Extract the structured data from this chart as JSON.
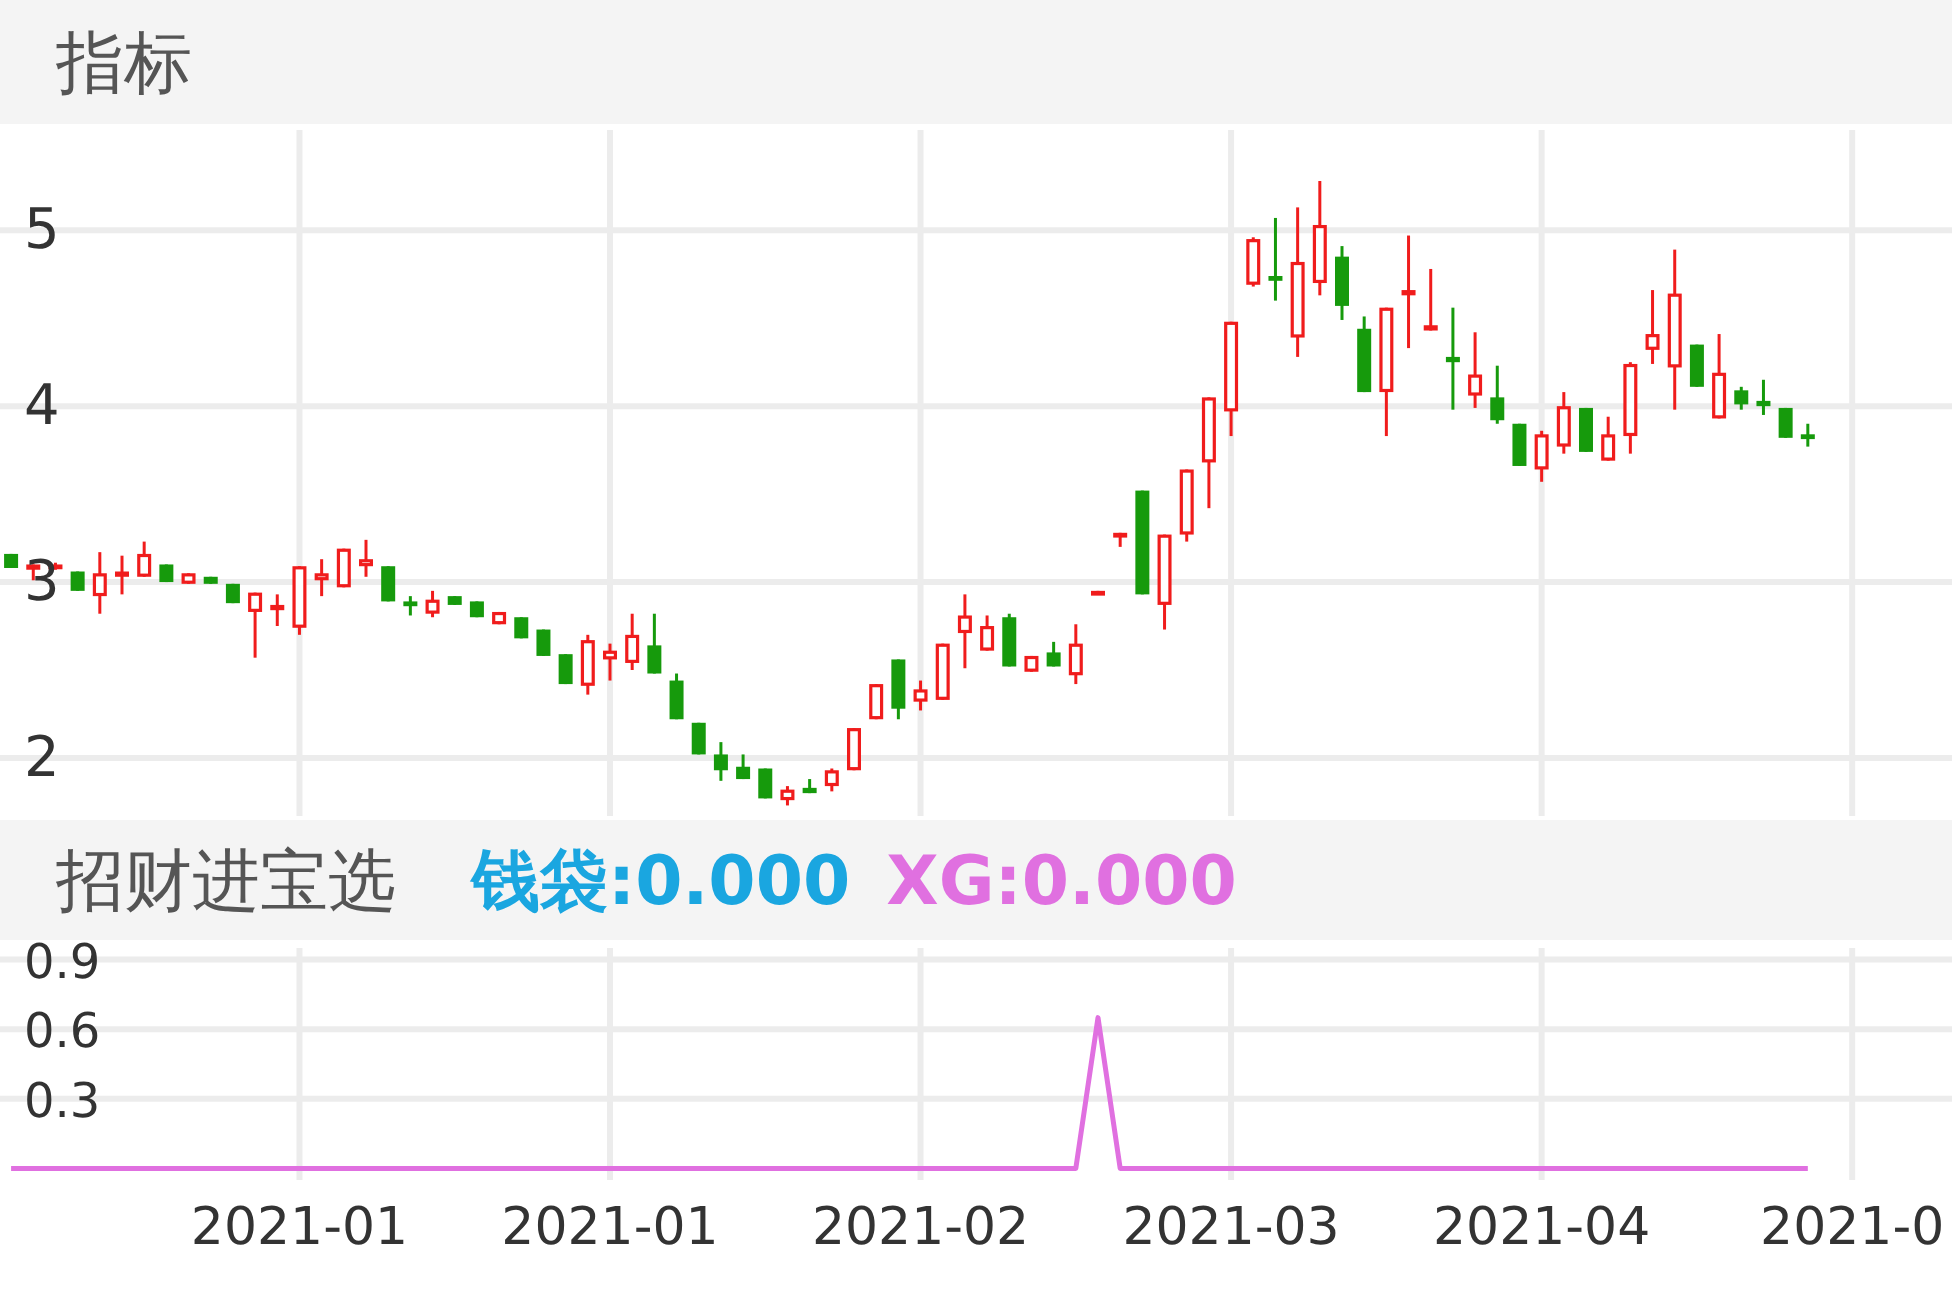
{
  "chart_data": [
    {
      "type": "candlestick",
      "title": "指标",
      "tick_labels": "y",
      "grid": true,
      "categories": [
        null,
        null,
        null,
        null,
        null,
        null,
        null,
        null,
        null,
        null,
        null,
        null,
        null,
        "2021-01",
        null,
        null,
        null,
        null,
        null,
        null,
        null,
        null,
        null,
        null,
        null,
        null,
        null,
        "2021-01",
        null,
        null,
        null,
        null,
        null,
        null,
        null,
        null,
        null,
        null,
        null,
        null,
        null,
        "2021-02",
        null,
        null,
        null,
        null,
        null,
        null,
        null,
        null,
        null,
        null,
        null,
        null,
        null,
        "2021-03",
        null,
        null,
        null,
        null,
        null,
        null,
        null,
        null,
        null,
        null,
        null,
        null,
        null,
        "2021-04",
        null,
        null,
        null,
        null,
        null,
        null,
        null,
        null,
        null,
        null,
        null,
        null,
        null,
        "2021-0",
        null,
        null,
        null,
        null
      ],
      "ohlc": [
        [
          3.16,
          3.16,
          3.08,
          3.08
        ],
        [
          3.07,
          3.1,
          3.01,
          3.1
        ],
        [
          3.08,
          3.11,
          3.07,
          3.1
        ],
        [
          3.06,
          3.06,
          2.95,
          2.95
        ],
        [
          2.92,
          3.17,
          2.82,
          3.05
        ],
        [
          3.03,
          3.15,
          2.93,
          3.06
        ],
        [
          3.03,
          3.23,
          3.03,
          3.16
        ],
        [
          3.1,
          3.1,
          3.0,
          3.0
        ],
        [
          2.99,
          3.05,
          2.99,
          3.05
        ],
        [
          3.03,
          3.03,
          2.99,
          2.99
        ],
        [
          2.99,
          2.99,
          2.88,
          2.88
        ],
        [
          2.83,
          2.94,
          2.57,
          2.94
        ],
        [
          2.84,
          2.93,
          2.75,
          2.87
        ],
        [
          2.74,
          3.09,
          2.7,
          3.09
        ],
        [
          3.01,
          3.13,
          2.92,
          3.05
        ],
        [
          2.97,
          3.19,
          2.97,
          3.19
        ],
        [
          3.09,
          3.24,
          3.03,
          3.13
        ],
        [
          3.09,
          3.09,
          2.89,
          2.89
        ],
        [
          2.89,
          2.92,
          2.81,
          2.87
        ],
        [
          2.82,
          2.95,
          2.8,
          2.9
        ],
        [
          2.92,
          2.92,
          2.87,
          2.87
        ],
        [
          2.89,
          2.89,
          2.8,
          2.8
        ],
        [
          2.76,
          2.83,
          2.76,
          2.83
        ],
        [
          2.8,
          2.8,
          2.68,
          2.68
        ],
        [
          2.73,
          2.73,
          2.58,
          2.58
        ],
        [
          2.59,
          2.59,
          2.42,
          2.42
        ],
        [
          2.41,
          2.7,
          2.36,
          2.67
        ],
        [
          2.56,
          2.65,
          2.44,
          2.61
        ],
        [
          2.54,
          2.82,
          2.5,
          2.7
        ],
        [
          2.64,
          2.82,
          2.48,
          2.48
        ],
        [
          2.44,
          2.48,
          2.22,
          2.22
        ],
        [
          2.2,
          2.2,
          2.02,
          2.02
        ],
        [
          2.02,
          2.09,
          1.87,
          1.93
        ],
        [
          1.95,
          2.02,
          1.88,
          1.88
        ],
        [
          1.94,
          1.94,
          1.77,
          1.77
        ],
        [
          1.76,
          1.84,
          1.73,
          1.82
        ],
        [
          1.83,
          1.88,
          1.8,
          1.8
        ],
        [
          1.84,
          1.94,
          1.81,
          1.93
        ],
        [
          1.93,
          2.17,
          1.93,
          2.17
        ],
        [
          2.22,
          2.42,
          2.22,
          2.42
        ],
        [
          2.56,
          2.56,
          2.22,
          2.28
        ],
        [
          2.32,
          2.44,
          2.27,
          2.39
        ],
        [
          2.33,
          2.65,
          2.33,
          2.65
        ],
        [
          2.71,
          2.93,
          2.51,
          2.81
        ],
        [
          2.61,
          2.81,
          2.61,
          2.75
        ],
        [
          2.8,
          2.82,
          2.52,
          2.52
        ],
        [
          2.49,
          2.58,
          2.49,
          2.58
        ],
        [
          2.6,
          2.66,
          2.52,
          2.52
        ],
        [
          2.47,
          2.76,
          2.42,
          2.65
        ],
        [
          2.94,
          2.95,
          2.94,
          2.95
        ],
        [
          3.26,
          3.28,
          3.2,
          3.28
        ],
        [
          3.52,
          3.52,
          2.93,
          2.93
        ],
        [
          2.87,
          3.27,
          2.73,
          3.27
        ],
        [
          3.27,
          3.64,
          3.23,
          3.64
        ],
        [
          3.68,
          4.05,
          3.42,
          4.05
        ],
        [
          3.97,
          4.48,
          3.83,
          4.48
        ],
        [
          4.69,
          4.96,
          4.68,
          4.95
        ],
        [
          4.74,
          5.07,
          4.6,
          4.72
        ],
        [
          4.39,
          5.13,
          4.28,
          4.82
        ],
        [
          4.7,
          5.28,
          4.63,
          5.03
        ],
        [
          4.85,
          4.91,
          4.49,
          4.57
        ],
        [
          4.44,
          4.51,
          4.08,
          4.08
        ],
        [
          4.08,
          4.56,
          3.83,
          4.56
        ],
        [
          4.63,
          4.97,
          4.33,
          4.66
        ],
        [
          4.43,
          4.78,
          4.43,
          4.46
        ],
        [
          4.28,
          4.56,
          3.98,
          4.25
        ],
        [
          4.06,
          4.42,
          3.99,
          4.18
        ],
        [
          4.05,
          4.23,
          3.9,
          3.92
        ],
        [
          3.9,
          3.9,
          3.66,
          3.66
        ],
        [
          3.64,
          3.86,
          3.57,
          3.84
        ],
        [
          3.77,
          4.08,
          3.73,
          4.0
        ],
        [
          3.99,
          3.99,
          3.74,
          3.74
        ],
        [
          3.69,
          3.94,
          3.69,
          3.84
        ],
        [
          3.83,
          4.25,
          3.73,
          4.24
        ],
        [
          4.32,
          4.66,
          4.24,
          4.41
        ],
        [
          4.22,
          4.89,
          3.98,
          4.64
        ],
        [
          4.35,
          4.35,
          4.11,
          4.11
        ],
        [
          3.93,
          4.41,
          3.93,
          4.19
        ],
        [
          4.09,
          4.11,
          3.98,
          4.01
        ],
        [
          4.03,
          4.15,
          3.95,
          4.0
        ],
        [
          3.99,
          3.99,
          3.82,
          3.82
        ],
        [
          3.84,
          3.9,
          3.77,
          3.82
        ],
        null,
        null,
        null,
        null,
        null,
        null
      ],
      "ylim": [
        1.67,
        5.57
      ],
      "yticks": [
        2,
        3,
        4,
        5
      ]
    },
    {
      "type": "line",
      "title": "招财进宝选",
      "annotations": [
        "钱袋:0.000",
        "XG:0.000"
      ],
      "grid": true,
      "categories": [
        null,
        null,
        null,
        null,
        null,
        null,
        null,
        null,
        null,
        null,
        null,
        null,
        null,
        "2021-01",
        null,
        null,
        null,
        null,
        null,
        null,
        null,
        null,
        null,
        null,
        null,
        null,
        null,
        "2021-01",
        null,
        null,
        null,
        null,
        null,
        null,
        null,
        null,
        null,
        null,
        null,
        null,
        null,
        "2021-02",
        null,
        null,
        null,
        null,
        null,
        null,
        null,
        null,
        null,
        null,
        null,
        null,
        null,
        "2021-03",
        null,
        null,
        null,
        null,
        null,
        null,
        null,
        null,
        null,
        null,
        null,
        null,
        null,
        "2021-04",
        null,
        null,
        null,
        null,
        null,
        null,
        null,
        null,
        null,
        null,
        null,
        null,
        null,
        "2021-0",
        null,
        null,
        null,
        null
      ],
      "series": [
        {
          "color": "#1aa6e0",
          "values": [
            null,
            null,
            null,
            null,
            null,
            null,
            null,
            null,
            null,
            null,
            null,
            null,
            null,
            null,
            null,
            null,
            null,
            null,
            null,
            null,
            null,
            null,
            null,
            null,
            null,
            null,
            null,
            null,
            null,
            null,
            null,
            null,
            null,
            null,
            null,
            null,
            null,
            null,
            null,
            null,
            null,
            null,
            null,
            null,
            null,
            null,
            null,
            null,
            null,
            null,
            null,
            null,
            null,
            null,
            null,
            null,
            null,
            null,
            null,
            null,
            null,
            null,
            null,
            null,
            null,
            null,
            null,
            null,
            null,
            null,
            null,
            null,
            null,
            null,
            null,
            null,
            null,
            null,
            null,
            null,
            null,
            null,
            null,
            null,
            null,
            null,
            null,
            null
          ]
        },
        {
          "color": "#e070e0",
          "values": [
            0,
            0,
            0,
            0,
            0,
            0,
            0,
            0,
            0,
            0,
            0,
            0,
            0,
            0,
            0,
            0,
            0,
            0,
            0,
            0,
            0,
            0,
            0,
            0,
            0,
            0,
            0,
            0,
            0,
            0,
            0,
            0,
            0,
            0,
            0,
            0,
            0,
            0,
            0,
            0,
            0,
            0,
            0,
            0,
            0,
            0,
            0,
            0,
            0,
            0.65,
            0,
            0,
            0,
            0,
            0,
            0,
            0,
            0,
            0,
            0,
            0,
            0,
            0,
            0,
            0,
            0,
            0,
            0,
            0,
            0,
            0,
            0,
            0,
            0,
            0,
            0,
            0,
            0,
            0,
            0,
            0,
            0,
            null,
            null,
            null,
            null,
            null,
            null
          ]
        }
      ],
      "ylim": [
        -0.05,
        0.95
      ],
      "yticks": [
        0.3,
        0.6,
        0.9
      ]
    }
  ]
}
